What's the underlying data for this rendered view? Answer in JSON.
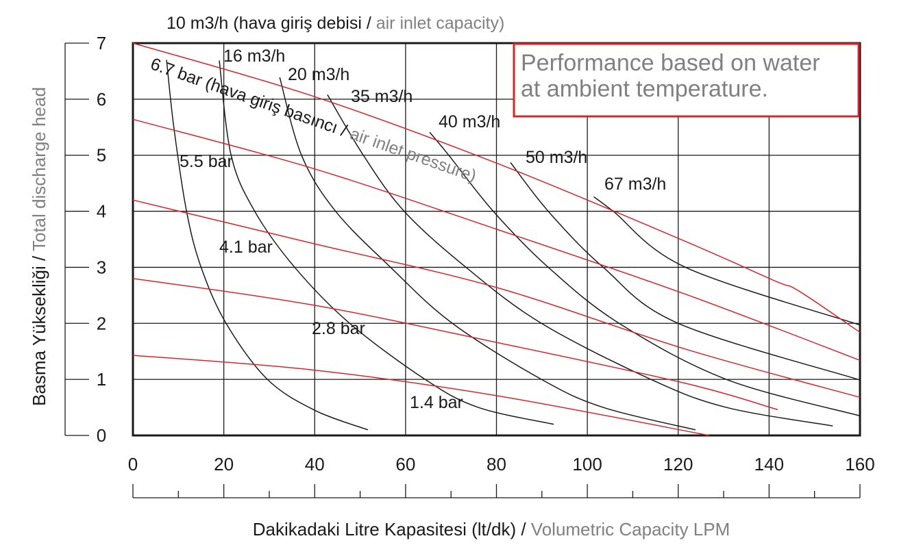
{
  "chart_data": {
    "type": "line",
    "top_label": [
      " (hava giriş debisi / ",
      "air inlet capacity)"
    ],
    "pressure_label": [
      " (hava giriş basıncı / ",
      "air inlet pressure)"
    ],
    "note": [
      "Performance based on water",
      "at ambient temperature."
    ],
    "y_label": [
      "Basma Yüksekliği / ",
      "Total discharge head"
    ],
    "x_label": [
      "Dakikadaki Litre Kapasitesi (lt/dk) / ",
      "Volumetric Capacity LPM"
    ],
    "xlim": [
      0,
      160
    ],
    "ylim": [
      0,
      7
    ],
    "xticks": [
      0,
      20,
      40,
      60,
      80,
      100,
      120,
      140,
      160
    ],
    "yticks": [
      0,
      1,
      2,
      3,
      4,
      5,
      6,
      7
    ],
    "grid": true,
    "series": [
      {
        "name": "10 m3/h",
        "color": "#1a1a1a",
        "x": [
          7.4,
          9,
          11.8,
          15,
          20.5,
          29.6,
          40,
          51.7
        ],
        "values": [
          6.7,
          5.5,
          4,
          3,
          2,
          1,
          0.45,
          0.1
        ]
      },
      {
        "name": "16 m3/h",
        "color": "#1a1a1a",
        "x": [
          19,
          21.6,
          26.8,
          35.6,
          47.7,
          64.3,
          76,
          92.6
        ],
        "values": [
          6.69,
          5,
          4,
          3,
          2,
          1,
          0.5,
          0.2
        ]
      },
      {
        "name": "20 m3/h",
        "color": "#1a1a1a",
        "x": [
          32.3,
          37.1,
          44.6,
          56.7,
          70.3,
          89.9,
          103.5,
          123.8
        ],
        "values": [
          6.39,
          5,
          4,
          3,
          2,
          1,
          0.5,
          0.1
        ]
      },
      {
        "name": "35 m3/h",
        "color": "#1a1a1a",
        "x": [
          42.8,
          50.7,
          59.7,
          73.3,
          89.9,
          114,
          130.6,
          154
        ],
        "values": [
          6.08,
          5,
          4,
          3,
          2,
          1,
          0.5,
          0.17
        ]
      },
      {
        "name": "40 m3/h",
        "color": "#1a1a1a",
        "x": [
          65.3,
          69.5,
          79.3,
          91.4,
          107,
          130.6,
          160
        ],
        "values": [
          5.41,
          5,
          4,
          3,
          2,
          1,
          0.35
        ]
      },
      {
        "name": "50 m3/h",
        "color": "#1a1a1a",
        "x": [
          83.1,
          91.4,
          103.5,
          120,
          160
        ],
        "values": [
          4.87,
          4,
          3,
          2,
          0.99
        ]
      },
      {
        "name": "67 m3/h",
        "color": "#1a1a1a",
        "x": [
          101.4,
          105.7,
          121.6,
          160
        ],
        "values": [
          4.26,
          4,
          3,
          1.97
        ]
      },
      {
        "name": "6.7 bar",
        "color": "#d8252b",
        "x": [
          0,
          39.4,
          80,
          120.8,
          141.2,
          146.5,
          160
        ],
        "values": [
          7,
          6.06,
          4.86,
          3.49,
          2.76,
          2.58,
          1.84
        ]
      },
      {
        "name": "5.5 bar",
        "color": "#d8252b",
        "x": [
          0,
          39.4,
          80,
          121.6,
          160
        ],
        "values": [
          5.64,
          4.77,
          3.68,
          2.52,
          1.34
        ]
      },
      {
        "name": "4.1 bar",
        "color": "#d8252b",
        "x": [
          0,
          39.4,
          80,
          121.6,
          160
        ],
        "values": [
          4.2,
          3.43,
          2.64,
          1.54,
          0.68
        ]
      },
      {
        "name": "2.8 bar",
        "color": "#d8252b",
        "x": [
          0,
          39.4,
          80,
          121.6,
          141.9
        ],
        "values": [
          2.8,
          2.33,
          1.66,
          0.93,
          0.46
        ]
      },
      {
        "name": "1.4 bar",
        "color": "#d8252b",
        "x": [
          0,
          39.4,
          80,
          126.8
        ],
        "values": [
          1.43,
          1.17,
          0.71,
          0
        ]
      }
    ]
  }
}
